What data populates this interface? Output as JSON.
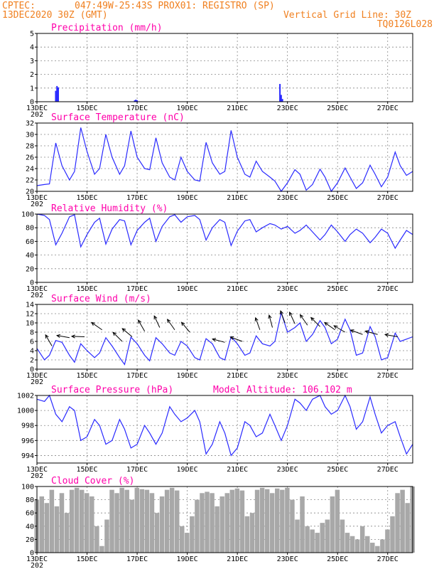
{
  "header": {
    "source": "CPTEC:",
    "location": "047:49W-25:43S  PROX01: REGISTRO (SP)",
    "run": "13DEC2020 30Z (GMT)",
    "grid_note": "Vertical Grid Line: 30Z",
    "code": "TQ0126L028"
  },
  "colors": {
    "header": "#f08020",
    "title": "#ff00aa",
    "line": "#2a2aff",
    "bar": "#2a2aff",
    "cloud": "#a8a8a8"
  },
  "x_labels": [
    "13DEC",
    "15DEC",
    "17DEC",
    "19DEC",
    "21DEC",
    "23DEC",
    "25DEC",
    "27DEC"
  ],
  "x_label_days": [
    13,
    15,
    17,
    19,
    21,
    23,
    25,
    27
  ],
  "x_stub": "202",
  "chart_data": [
    {
      "type": "bar",
      "title": "Precipitation (mm/h)",
      "xlabel": "",
      "ylabel": "",
      "ylim": [
        0,
        5
      ],
      "yticks": [
        "0",
        "1",
        "2",
        "3",
        "4",
        "5"
      ],
      "grid": true,
      "x": [
        13.75,
        13.8,
        13.85,
        16.9,
        16.95,
        17.0,
        22.7,
        22.75,
        22.8
      ],
      "values": [
        0.8,
        1.15,
        1.05,
        0.1,
        0.15,
        0.1,
        1.3,
        0.5,
        0.2
      ]
    },
    {
      "type": "line",
      "title": "Surface Temperature (nC)",
      "xlabel": "",
      "ylabel": "",
      "ylim": [
        20,
        32
      ],
      "yticks": [
        "20",
        "22",
        "24",
        "26",
        "28",
        "30",
        "32"
      ],
      "grid": true,
      "x": [
        13.0,
        13.3,
        13.5,
        13.75,
        14.0,
        14.3,
        14.5,
        14.75,
        15.0,
        15.3,
        15.5,
        15.75,
        16.0,
        16.3,
        16.5,
        16.75,
        17.0,
        17.3,
        17.5,
        17.75,
        18.0,
        18.3,
        18.5,
        18.75,
        19.0,
        19.3,
        19.5,
        19.75,
        20.0,
        20.3,
        20.5,
        20.75,
        21.0,
        21.3,
        21.5,
        21.75,
        22.0,
        22.3,
        22.5,
        22.75,
        23.0,
        23.3,
        23.5,
        23.75,
        24.0,
        24.3,
        24.5,
        24.75,
        25.0,
        25.3,
        25.5,
        25.75,
        26.0,
        26.3,
        26.5,
        26.75,
        27.0,
        27.3,
        27.5,
        27.75,
        28.0
      ],
      "values": [
        21.0,
        21.2,
        21.3,
        28.5,
        24.5,
        22.0,
        23.5,
        31.2,
        27.0,
        23.0,
        24.0,
        30.0,
        26.0,
        23.0,
        24.5,
        30.6,
        26.0,
        24.0,
        23.8,
        29.4,
        25.0,
        22.5,
        22.0,
        26.0,
        23.5,
        22.0,
        21.8,
        28.6,
        25.0,
        23.0,
        23.5,
        30.7,
        26.0,
        23.0,
        22.5,
        25.3,
        23.5,
        22.5,
        21.8,
        20.0,
        21.5,
        23.8,
        23.0,
        20.2,
        21.2,
        23.9,
        22.5,
        20.0,
        21.5,
        24.1,
        22.5,
        20.5,
        21.5,
        24.6,
        23.0,
        20.8,
        22.5,
        26.9,
        24.5,
        22.8,
        23.5
      ]
    },
    {
      "type": "line",
      "title": "Relative Humidity (%)",
      "xlabel": "",
      "ylabel": "",
      "ylim": [
        0,
        100
      ],
      "yticks": [
        "0",
        "20",
        "40",
        "60",
        "80",
        "100"
      ],
      "grid": true,
      "x": [
        13.0,
        13.3,
        13.5,
        13.75,
        14.0,
        14.3,
        14.5,
        14.75,
        15.0,
        15.3,
        15.5,
        15.75,
        16.0,
        16.3,
        16.5,
        16.75,
        17.0,
        17.3,
        17.5,
        17.75,
        18.0,
        18.3,
        18.5,
        18.75,
        19.0,
        19.3,
        19.5,
        19.75,
        20.0,
        20.3,
        20.5,
        20.75,
        21.0,
        21.3,
        21.5,
        21.75,
        22.0,
        22.3,
        22.5,
        22.75,
        23.0,
        23.3,
        23.5,
        23.75,
        24.0,
        24.3,
        24.5,
        24.75,
        25.0,
        25.3,
        25.5,
        25.75,
        26.0,
        26.3,
        26.5,
        26.75,
        27.0,
        27.3,
        27.5,
        27.75,
        28.0
      ],
      "values": [
        100,
        98,
        92,
        55,
        72,
        96,
        99,
        52,
        70,
        88,
        94,
        56,
        78,
        92,
        90,
        55,
        76,
        88,
        94,
        60,
        82,
        96,
        99,
        88,
        96,
        98,
        92,
        62,
        80,
        92,
        88,
        54,
        75,
        90,
        92,
        74,
        80,
        86,
        84,
        78,
        82,
        72,
        76,
        84,
        74,
        62,
        70,
        84,
        74,
        60,
        70,
        78,
        72,
        58,
        66,
        78,
        72,
        50,
        62,
        76,
        70
      ]
    },
    {
      "type": "line",
      "title": "Surface Wind (m/s)",
      "xlabel": "",
      "ylabel": "",
      "ylim": [
        0,
        14
      ],
      "yticks": [
        "0",
        "2",
        "4",
        "6",
        "8",
        "10",
        "12",
        "14"
      ],
      "grid": true,
      "x": [
        13.0,
        13.3,
        13.5,
        13.75,
        14.0,
        14.3,
        14.5,
        14.75,
        15.0,
        15.3,
        15.5,
        15.75,
        16.0,
        16.3,
        16.5,
        16.75,
        17.0,
        17.3,
        17.5,
        17.75,
        18.0,
        18.3,
        18.5,
        18.75,
        19.0,
        19.3,
        19.5,
        19.75,
        20.0,
        20.3,
        20.5,
        20.75,
        21.0,
        21.3,
        21.5,
        21.75,
        22.0,
        22.3,
        22.5,
        22.75,
        23.0,
        23.3,
        23.5,
        23.75,
        24.0,
        24.3,
        24.5,
        24.75,
        25.0,
        25.3,
        25.5,
        25.75,
        26.0,
        26.3,
        26.5,
        26.75,
        27.0,
        27.3,
        27.5,
        27.75,
        28.0
      ],
      "values": [
        4.5,
        2.0,
        3.0,
        6.2,
        5.8,
        3.0,
        1.5,
        5.5,
        4.0,
        2.5,
        3.5,
        6.8,
        5.0,
        2.5,
        1.0,
        6.9,
        5.5,
        3.0,
        1.8,
        6.8,
        5.5,
        3.5,
        3.0,
        6.0,
        5.0,
        2.5,
        2.0,
        6.6,
        5.5,
        2.5,
        2.0,
        7.0,
        5.5,
        3.0,
        3.5,
        7.2,
        5.5,
        5.0,
        6.0,
        12.2,
        8.0,
        9.0,
        10.0,
        6.0,
        7.5,
        10.5,
        9.0,
        5.5,
        6.5,
        10.8,
        8.5,
        3.0,
        3.5,
        9.2,
        7.0,
        2.0,
        2.5,
        7.8,
        6.0,
        6.5,
        7.0
      ],
      "barbs": [
        {
          "x": 13.6,
          "y": 5.0,
          "angle": -120
        },
        {
          "x": 14.3,
          "y": 6.8,
          "angle": -170
        },
        {
          "x": 14.9,
          "y": 7.0,
          "angle": -178
        },
        {
          "x": 15.6,
          "y": 8.5,
          "angle": -145
        },
        {
          "x": 16.4,
          "y": 6.0,
          "angle": -135
        },
        {
          "x": 16.8,
          "y": 7.0,
          "angle": -140
        },
        {
          "x": 17.3,
          "y": 8.2,
          "angle": -120
        },
        {
          "x": 17.9,
          "y": 9.0,
          "angle": -115
        },
        {
          "x": 18.5,
          "y": 8.5,
          "angle": -125
        },
        {
          "x": 19.1,
          "y": 8.0,
          "angle": -130
        },
        {
          "x": 20.5,
          "y": 5.8,
          "angle": -165
        },
        {
          "x": 21.2,
          "y": 6.0,
          "angle": -160
        },
        {
          "x": 21.9,
          "y": 8.5,
          "angle": -110
        },
        {
          "x": 22.4,
          "y": 9.0,
          "angle": -105
        },
        {
          "x": 22.9,
          "y": 10.0,
          "angle": -110
        },
        {
          "x": 23.3,
          "y": 9.8,
          "angle": -115
        },
        {
          "x": 23.8,
          "y": 9.5,
          "angle": -125
        },
        {
          "x": 24.3,
          "y": 9.2,
          "angle": -135
        },
        {
          "x": 24.9,
          "y": 8.5,
          "angle": -145
        },
        {
          "x": 25.3,
          "y": 8.0,
          "angle": -150
        },
        {
          "x": 26.0,
          "y": 7.5,
          "angle": -160
        },
        {
          "x": 26.6,
          "y": 7.5,
          "angle": -165
        },
        {
          "x": 27.4,
          "y": 7.0,
          "angle": -170
        }
      ]
    },
    {
      "type": "line",
      "title": "Surface Pressure (hPa)",
      "annotation": "Model Altitude: 106.102  m",
      "xlabel": "",
      "ylabel": "",
      "ylim": [
        993,
        1002
      ],
      "yticks": [
        "994",
        "996",
        "998",
        "1000",
        "1002"
      ],
      "grid": true,
      "x": [
        13.0,
        13.3,
        13.5,
        13.75,
        14.0,
        14.3,
        14.5,
        14.75,
        15.0,
        15.3,
        15.5,
        15.75,
        16.0,
        16.3,
        16.5,
        16.75,
        17.0,
        17.3,
        17.5,
        17.75,
        18.0,
        18.3,
        18.5,
        18.75,
        19.0,
        19.3,
        19.5,
        19.75,
        20.0,
        20.3,
        20.5,
        20.75,
        21.0,
        21.3,
        21.5,
        21.75,
        22.0,
        22.3,
        22.5,
        22.75,
        23.0,
        23.3,
        23.5,
        23.75,
        24.0,
        24.3,
        24.5,
        24.75,
        25.0,
        25.3,
        25.5,
        25.75,
        26.0,
        26.3,
        26.5,
        26.75,
        27.0,
        27.3,
        27.5,
        27.75,
        28.0
      ],
      "values": [
        1001.5,
        1001.2,
        1002.0,
        999.5,
        998.5,
        1000.5,
        1000.0,
        996.0,
        996.5,
        998.8,
        998.0,
        995.5,
        996.0,
        998.8,
        997.5,
        995.0,
        995.5,
        998.0,
        997.0,
        995.5,
        997.0,
        1000.5,
        999.5,
        998.5,
        999.0,
        1000.0,
        998.5,
        994.2,
        995.5,
        998.5,
        997.0,
        994.0,
        995.0,
        998.5,
        998.0,
        996.5,
        997.0,
        999.5,
        998.0,
        996.0,
        998.0,
        1001.5,
        1001.0,
        1000.0,
        1001.5,
        1002.0,
        1000.5,
        999.5,
        1000.0,
        1002.0,
        1000.5,
        997.5,
        998.5,
        1001.8,
        999.5,
        997.0,
        998.0,
        998.5,
        996.5,
        994.2,
        995.5
      ]
    },
    {
      "type": "area",
      "title": "Cloud Cover (%)",
      "xlabel": "",
      "ylabel": "",
      "ylim": [
        0,
        100
      ],
      "yticks": [
        "0",
        "20",
        "40",
        "60",
        "80",
        "100"
      ],
      "grid": true,
      "x": [
        13.0,
        13.2,
        13.4,
        13.6,
        13.8,
        14.0,
        14.2,
        14.4,
        14.6,
        14.8,
        15.0,
        15.2,
        15.4,
        15.6,
        15.8,
        16.0,
        16.2,
        16.4,
        16.6,
        16.8,
        17.0,
        17.2,
        17.4,
        17.6,
        17.8,
        18.0,
        18.2,
        18.4,
        18.6,
        18.8,
        19.0,
        19.2,
        19.4,
        19.6,
        19.8,
        20.0,
        20.2,
        20.4,
        20.6,
        20.8,
        21.0,
        21.2,
        21.4,
        21.6,
        21.8,
        22.0,
        22.2,
        22.4,
        22.6,
        22.8,
        23.0,
        23.2,
        23.4,
        23.6,
        23.8,
        24.0,
        24.2,
        24.4,
        24.6,
        24.8,
        25.0,
        25.2,
        25.4,
        25.6,
        25.8,
        26.0,
        26.2,
        26.4,
        26.6,
        26.8,
        27.0,
        27.2,
        27.4,
        27.6,
        27.8,
        28.0
      ],
      "values": [
        80,
        85,
        75,
        95,
        70,
        90,
        60,
        95,
        98,
        95,
        90,
        85,
        40,
        10,
        50,
        95,
        90,
        98,
        95,
        80,
        98,
        96,
        95,
        90,
        60,
        85,
        95,
        98,
        94,
        40,
        30,
        55,
        80,
        90,
        92,
        90,
        70,
        85,
        90,
        95,
        97,
        94,
        55,
        60,
        95,
        98,
        96,
        90,
        97,
        95,
        98,
        80,
        50,
        85,
        40,
        35,
        30,
        45,
        50,
        85,
        95,
        50,
        30,
        25,
        20,
        40,
        25,
        15,
        10,
        20,
        35,
        55,
        90,
        95,
        75,
        100
      ]
    }
  ]
}
